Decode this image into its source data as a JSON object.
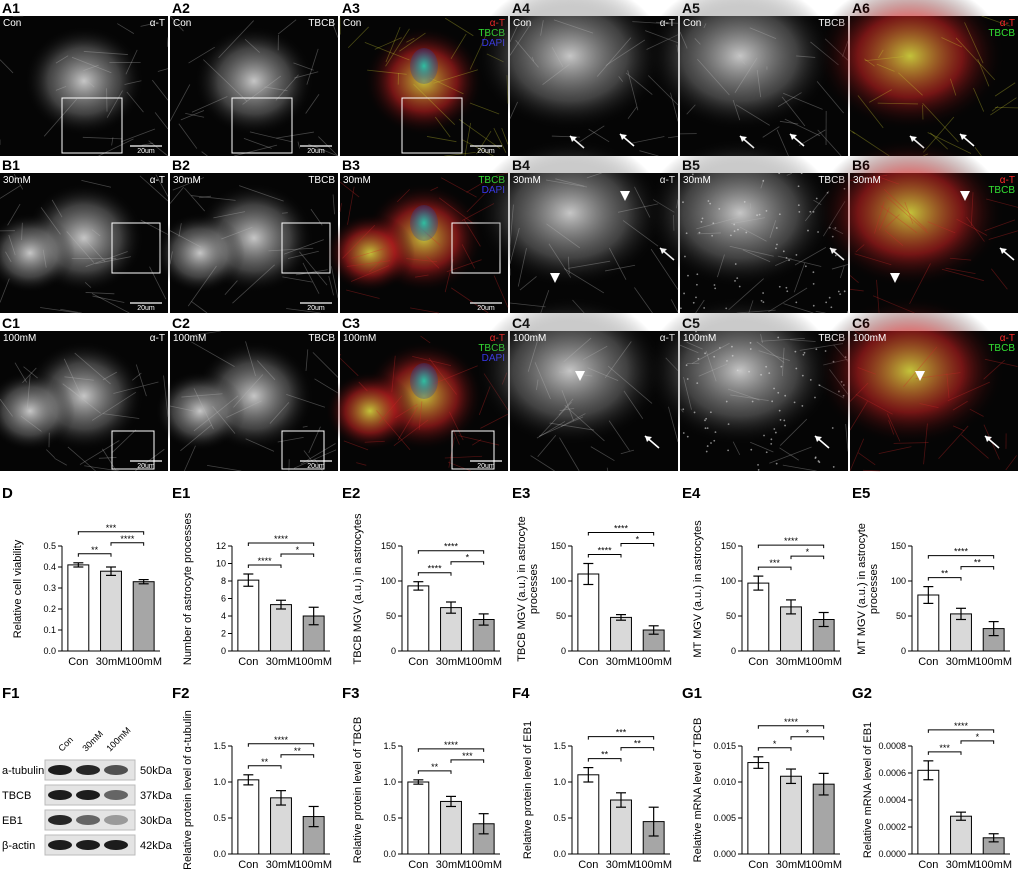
{
  "micrographs": [
    {
      "label": "A1",
      "condition": "Con",
      "stains": [
        {
          "text": "α-T",
          "color": "#ffffff"
        }
      ],
      "scale_bar": "20um"
    },
    {
      "label": "A2",
      "condition": "Con",
      "stains": [
        {
          "text": "TBCB",
          "color": "#ffffff"
        }
      ],
      "scale_bar": "20um"
    },
    {
      "label": "A3",
      "condition": "Con",
      "stains": [
        {
          "text": "α-T",
          "color": "#ff2a2a"
        },
        {
          "text": "TBCB",
          "color": "#33e033"
        },
        {
          "text": "DAPI",
          "color": "#3a3aff"
        }
      ],
      "scale_bar": "20um"
    },
    {
      "label": "A4",
      "condition": "Con",
      "stains": [
        {
          "text": "α-T",
          "color": "#ffffff"
        }
      ]
    },
    {
      "label": "A5",
      "condition": "Con",
      "stains": [
        {
          "text": "TBCB",
          "color": "#ffffff"
        }
      ]
    },
    {
      "label": "A6",
      "stains": [
        {
          "text": "α-T",
          "color": "#ff2a2a"
        },
        {
          "text": "TBCB",
          "color": "#33e033"
        }
      ]
    },
    {
      "label": "B1",
      "condition": "30mM",
      "stains": [
        {
          "text": "α-T",
          "color": "#ffffff"
        }
      ],
      "scale_bar": "20um"
    },
    {
      "label": "B2",
      "condition": "30mM",
      "stains": [
        {
          "text": "TBCB",
          "color": "#ffffff"
        }
      ],
      "scale_bar": "20um"
    },
    {
      "label": "B3",
      "condition": "30mM",
      "stains": [
        {
          "text": "TBCB",
          "color": "#33e033"
        },
        {
          "text": "DAPI",
          "color": "#3a3aff"
        }
      ],
      "scale_bar": "20um"
    },
    {
      "label": "B4",
      "condition": "30mM",
      "stains": [
        {
          "text": "α-T",
          "color": "#ffffff"
        }
      ]
    },
    {
      "label": "B5",
      "condition": "30mM",
      "stains": [
        {
          "text": "TBCB",
          "color": "#ffffff"
        }
      ]
    },
    {
      "label": "B6",
      "condition": "30mM",
      "stains": [
        {
          "text": "α-T",
          "color": "#ff2a2a"
        },
        {
          "text": "TBCB",
          "color": "#33e033"
        }
      ]
    },
    {
      "label": "C1",
      "condition": "100mM",
      "stains": [
        {
          "text": "α-T",
          "color": "#ffffff"
        }
      ],
      "scale_bar": "20um"
    },
    {
      "label": "C2",
      "condition": "100mM",
      "stains": [
        {
          "text": "TBCB",
          "color": "#ffffff"
        }
      ],
      "scale_bar": "20um"
    },
    {
      "label": "C3",
      "condition": "100mM",
      "stains": [
        {
          "text": "α-T",
          "color": "#ff2a2a"
        },
        {
          "text": "TBCB",
          "color": "#33e033"
        },
        {
          "text": "DAPI",
          "color": "#3a3aff"
        }
      ],
      "scale_bar": "20um"
    },
    {
      "label": "C4",
      "condition": "100mM",
      "stains": [
        {
          "text": "α-T",
          "color": "#ffffff"
        }
      ]
    },
    {
      "label": "C5",
      "condition": "100mM",
      "stains": [
        {
          "text": "TBCB",
          "color": "#ffffff"
        }
      ]
    },
    {
      "label": "C6",
      "condition": "100mM",
      "stains": [
        {
          "text": "α-T",
          "color": "#ff2a2a"
        },
        {
          "text": "TBCB",
          "color": "#33e033"
        }
      ]
    }
  ],
  "blot": {
    "label": "F1",
    "lanes": [
      "Con",
      "30mM",
      "100mM"
    ],
    "rows": [
      {
        "protein": "a-tubulin",
        "size": "50kDa"
      },
      {
        "protein": "TBCB",
        "size": "37kDa"
      },
      {
        "protein": "EB1",
        "size": "30kDa"
      },
      {
        "protein": "β-actin",
        "size": "42kDa"
      }
    ]
  },
  "chart_data": [
    {
      "type": "bar",
      "panel": "D",
      "y_label": "Relative cell viability",
      "categories": [
        "Con",
        "30mM",
        "100mM"
      ],
      "values": [
        0.41,
        0.38,
        0.33
      ],
      "errors": [
        0.01,
        0.02,
        0.01
      ],
      "colors": [
        "#ffffff",
        "#d9d9d9",
        "#a6a6a6"
      ],
      "ylim": [
        0,
        0.5
      ],
      "yticks": [
        {
          "value": 0,
          "label": "0.0"
        },
        0.1,
        0.2,
        0.3,
        0.4,
        0.5
      ],
      "significance": [
        {
          "between": [
            "Con",
            "30mM"
          ],
          "label": "**"
        },
        {
          "between": [
            "Con",
            "100mM"
          ],
          "label": "***"
        },
        {
          "between": [
            "30mM",
            "100mM"
          ],
          "label": "****"
        }
      ]
    },
    {
      "type": "bar",
      "panel": "E1",
      "y_label": "Number of astrocyte processes",
      "categories": [
        "Con",
        "30mM",
        "100mM"
      ],
      "values": [
        8.1,
        5.3,
        4.0
      ],
      "errors": [
        0.7,
        0.5,
        1.0
      ],
      "colors": [
        "#ffffff",
        "#d9d9d9",
        "#a6a6a6"
      ],
      "ylim": [
        0,
        12
      ],
      "yticks": [
        0,
        2,
        4,
        6,
        8,
        10,
        12
      ],
      "significance": [
        {
          "between": [
            "Con",
            "30mM"
          ],
          "label": "****"
        },
        {
          "between": [
            "Con",
            "100mM"
          ],
          "label": "****"
        },
        {
          "between": [
            "30mM",
            "100mM"
          ],
          "label": "*"
        }
      ]
    },
    {
      "type": "bar",
      "panel": "E2",
      "y_label": "TBCB MGV (a.u.) in astrocytes",
      "categories": [
        "Con",
        "30mM",
        "100mM"
      ],
      "values": [
        93,
        62,
        45
      ],
      "errors": [
        6,
        8,
        8
      ],
      "colors": [
        "#ffffff",
        "#d9d9d9",
        "#a6a6a6"
      ],
      "ylim": [
        0,
        150
      ],
      "yticks": [
        0,
        50,
        100,
        150
      ],
      "significance": [
        {
          "between": [
            "Con",
            "30mM"
          ],
          "label": "****"
        },
        {
          "between": [
            "Con",
            "100mM"
          ],
          "label": "****"
        },
        {
          "between": [
            "30mM",
            "100mM"
          ],
          "label": "*"
        }
      ]
    },
    {
      "type": "bar",
      "panel": "E3",
      "y_label": "TBCB MGV (a.u.) in astrocyte processes",
      "categories": [
        "Con",
        "30mM",
        "100mM"
      ],
      "values": [
        110,
        48,
        30
      ],
      "errors": [
        15,
        4,
        6
      ],
      "colors": [
        "#ffffff",
        "#d9d9d9",
        "#a6a6a6"
      ],
      "ylim": [
        0,
        150
      ],
      "yticks": [
        0,
        50,
        100,
        150
      ],
      "significance": [
        {
          "between": [
            "Con",
            "30mM"
          ],
          "label": "****"
        },
        {
          "between": [
            "Con",
            "100mM"
          ],
          "label": "****"
        },
        {
          "between": [
            "30mM",
            "100mM"
          ],
          "label": "*"
        }
      ]
    },
    {
      "type": "bar",
      "panel": "E4",
      "y_label": "MT MGV (a.u.) in astrocytes",
      "categories": [
        "Con",
        "30mM",
        "100mM"
      ],
      "values": [
        97,
        63,
        45
      ],
      "errors": [
        10,
        10,
        10
      ],
      "colors": [
        "#ffffff",
        "#d9d9d9",
        "#a6a6a6"
      ],
      "ylim": [
        0,
        150
      ],
      "yticks": [
        0,
        50,
        100,
        150
      ],
      "significance": [
        {
          "between": [
            "Con",
            "30mM"
          ],
          "label": "***"
        },
        {
          "between": [
            "Con",
            "100mM"
          ],
          "label": "****"
        },
        {
          "between": [
            "30mM",
            "100mM"
          ],
          "label": "*"
        }
      ]
    },
    {
      "type": "bar",
      "panel": "E5",
      "y_label": "MT MGV (a.u.) in astrocyte processes",
      "categories": [
        "Con",
        "30mM",
        "100mM"
      ],
      "values": [
        80,
        53,
        32
      ],
      "errors": [
        12,
        8,
        10
      ],
      "colors": [
        "#ffffff",
        "#d9d9d9",
        "#a6a6a6"
      ],
      "ylim": [
        0,
        150
      ],
      "yticks": [
        0,
        50,
        100,
        150
      ],
      "significance": [
        {
          "between": [
            "Con",
            "30mM"
          ],
          "label": "**"
        },
        {
          "between": [
            "Con",
            "100mM"
          ],
          "label": "****"
        },
        {
          "between": [
            "30mM",
            "100mM"
          ],
          "label": "**"
        }
      ]
    },
    {
      "type": "bar",
      "panel": "F2",
      "y_label": "Relative protein level of α-tubulin",
      "categories": [
        "Con",
        "30mM",
        "100mM"
      ],
      "values": [
        1.03,
        0.78,
        0.52
      ],
      "errors": [
        0.07,
        0.1,
        0.14
      ],
      "colors": [
        "#ffffff",
        "#d9d9d9",
        "#a6a6a6"
      ],
      "ylim": [
        0,
        1.5
      ],
      "yticks": [
        {
          "value": 0,
          "label": "0.0"
        },
        0.5,
        {
          "value": 1,
          "label": "1.0"
        },
        1.5
      ],
      "significance": [
        {
          "between": [
            "Con",
            "30mM"
          ],
          "label": "**"
        },
        {
          "between": [
            "Con",
            "100mM"
          ],
          "label": "****"
        },
        {
          "between": [
            "30mM",
            "100mM"
          ],
          "label": "**"
        }
      ]
    },
    {
      "type": "bar",
      "panel": "F3",
      "y_label": "Relative protein level of TBCB",
      "categories": [
        "Con",
        "30mM",
        "100mM"
      ],
      "values": [
        1.0,
        0.73,
        0.42
      ],
      "errors": [
        0.03,
        0.07,
        0.14
      ],
      "colors": [
        "#ffffff",
        "#d9d9d9",
        "#a6a6a6"
      ],
      "ylim": [
        0,
        1.5
      ],
      "yticks": [
        {
          "value": 0,
          "label": "0.0"
        },
        0.5,
        {
          "value": 1,
          "label": "1.0"
        },
        1.5
      ],
      "significance": [
        {
          "between": [
            "Con",
            "30mM"
          ],
          "label": "**"
        },
        {
          "between": [
            "Con",
            "100mM"
          ],
          "label": "****"
        },
        {
          "between": [
            "30mM",
            "100mM"
          ],
          "label": "***"
        }
      ]
    },
    {
      "type": "bar",
      "panel": "F4",
      "y_label": "Relative protein level of EB1",
      "categories": [
        "Con",
        "30mM",
        "100mM"
      ],
      "values": [
        1.1,
        0.75,
        0.45
      ],
      "errors": [
        0.1,
        0.1,
        0.2
      ],
      "colors": [
        "#ffffff",
        "#d9d9d9",
        "#a6a6a6"
      ],
      "ylim": [
        0,
        1.5
      ],
      "yticks": [
        {
          "value": 0,
          "label": "0.0"
        },
        0.5,
        {
          "value": 1,
          "label": "1.0"
        },
        1.5
      ],
      "significance": [
        {
          "between": [
            "Con",
            "30mM"
          ],
          "label": "**"
        },
        {
          "between": [
            "Con",
            "100mM"
          ],
          "label": "***"
        },
        {
          "between": [
            "30mM",
            "100mM"
          ],
          "label": "**"
        }
      ]
    },
    {
      "type": "bar",
      "panel": "G1",
      "y_label": "Relative mRNA level of TBCB",
      "categories": [
        "Con",
        "30mM",
        "100mM"
      ],
      "values": [
        0.0127,
        0.0108,
        0.0097
      ],
      "errors": [
        0.0008,
        0.001,
        0.0015
      ],
      "colors": [
        "#ffffff",
        "#d9d9d9",
        "#a6a6a6"
      ],
      "ylim": [
        0,
        0.015
      ],
      "yticks": [
        {
          "value": 0,
          "label": "0.000"
        },
        {
          "value": 0.005,
          "label": "0.005"
        },
        {
          "value": 0.01,
          "label": "0.010"
        },
        {
          "value": 0.015,
          "label": "0.015"
        }
      ],
      "significance": [
        {
          "between": [
            "Con",
            "30mM"
          ],
          "label": "*"
        },
        {
          "between": [
            "Con",
            "100mM"
          ],
          "label": "****"
        },
        {
          "between": [
            "30mM",
            "100mM"
          ],
          "label": "*"
        }
      ]
    },
    {
      "type": "bar",
      "panel": "G2",
      "y_label": "Relative mRNA level of EB1",
      "categories": [
        "Con",
        "30mM",
        "100mM"
      ],
      "values": [
        0.00062,
        0.00028,
        0.00012
      ],
      "errors": [
        7e-05,
        3e-05,
        3e-05
      ],
      "colors": [
        "#ffffff",
        "#d9d9d9",
        "#a6a6a6"
      ],
      "ylim": [
        0,
        0.0008
      ],
      "yticks": [
        {
          "value": 0,
          "label": "0.0000"
        },
        {
          "value": 0.0002,
          "label": "0.0002"
        },
        {
          "value": 0.0004,
          "label": "0.0004"
        },
        {
          "value": 0.0006,
          "label": "0.0006"
        },
        {
          "value": 0.0008,
          "label": "0.0008"
        }
      ],
      "significance": [
        {
          "between": [
            "Con",
            "30mM"
          ],
          "label": "***"
        },
        {
          "between": [
            "Con",
            "100mM"
          ],
          "label": "****"
        },
        {
          "between": [
            "30mM",
            "100mM"
          ],
          "label": "*"
        }
      ]
    }
  ]
}
